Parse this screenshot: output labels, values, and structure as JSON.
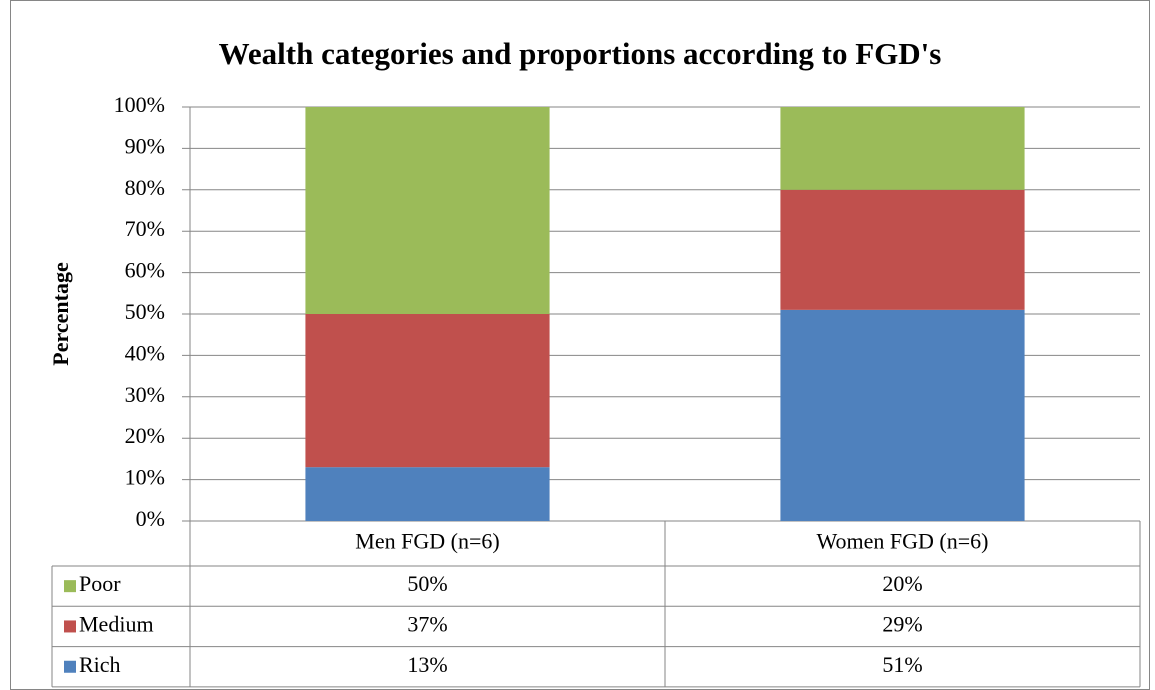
{
  "chart_data": {
    "type": "stacked_bar",
    "title": "Wealth categories and proportions according to FGD's",
    "y_label": "Percentage",
    "categories": [
      "Men FGD (n=6)",
      "Women FGD (n=6)"
    ],
    "series": [
      {
        "name": "Rich",
        "color": "#4f81bd",
        "values": [
          13,
          51
        ],
        "value_labels": [
          "13%",
          "51%"
        ]
      },
      {
        "name": "Medium",
        "color": "#c0504d",
        "values": [
          37,
          29
        ],
        "value_labels": [
          "37%",
          "29%"
        ]
      },
      {
        "name": "Poor",
        "color": "#9bbb59",
        "values": [
          50,
          20
        ],
        "value_labels": [
          "50%",
          "20%"
        ]
      }
    ],
    "ylim": [
      0,
      100
    ],
    "yticks": [
      {
        "value": 0,
        "label": "0%"
      },
      {
        "value": 10,
        "label": "10%"
      },
      {
        "value": 20,
        "label": "20%"
      },
      {
        "value": 30,
        "label": "30%"
      },
      {
        "value": 40,
        "label": "40%"
      },
      {
        "value": 50,
        "label": "50%"
      },
      {
        "value": 60,
        "label": "60%"
      },
      {
        "value": 70,
        "label": "70%"
      },
      {
        "value": 80,
        "label": "80%"
      },
      {
        "value": 90,
        "label": "90%"
      },
      {
        "value": 100,
        "label": "100%"
      }
    ],
    "grid": true
  }
}
